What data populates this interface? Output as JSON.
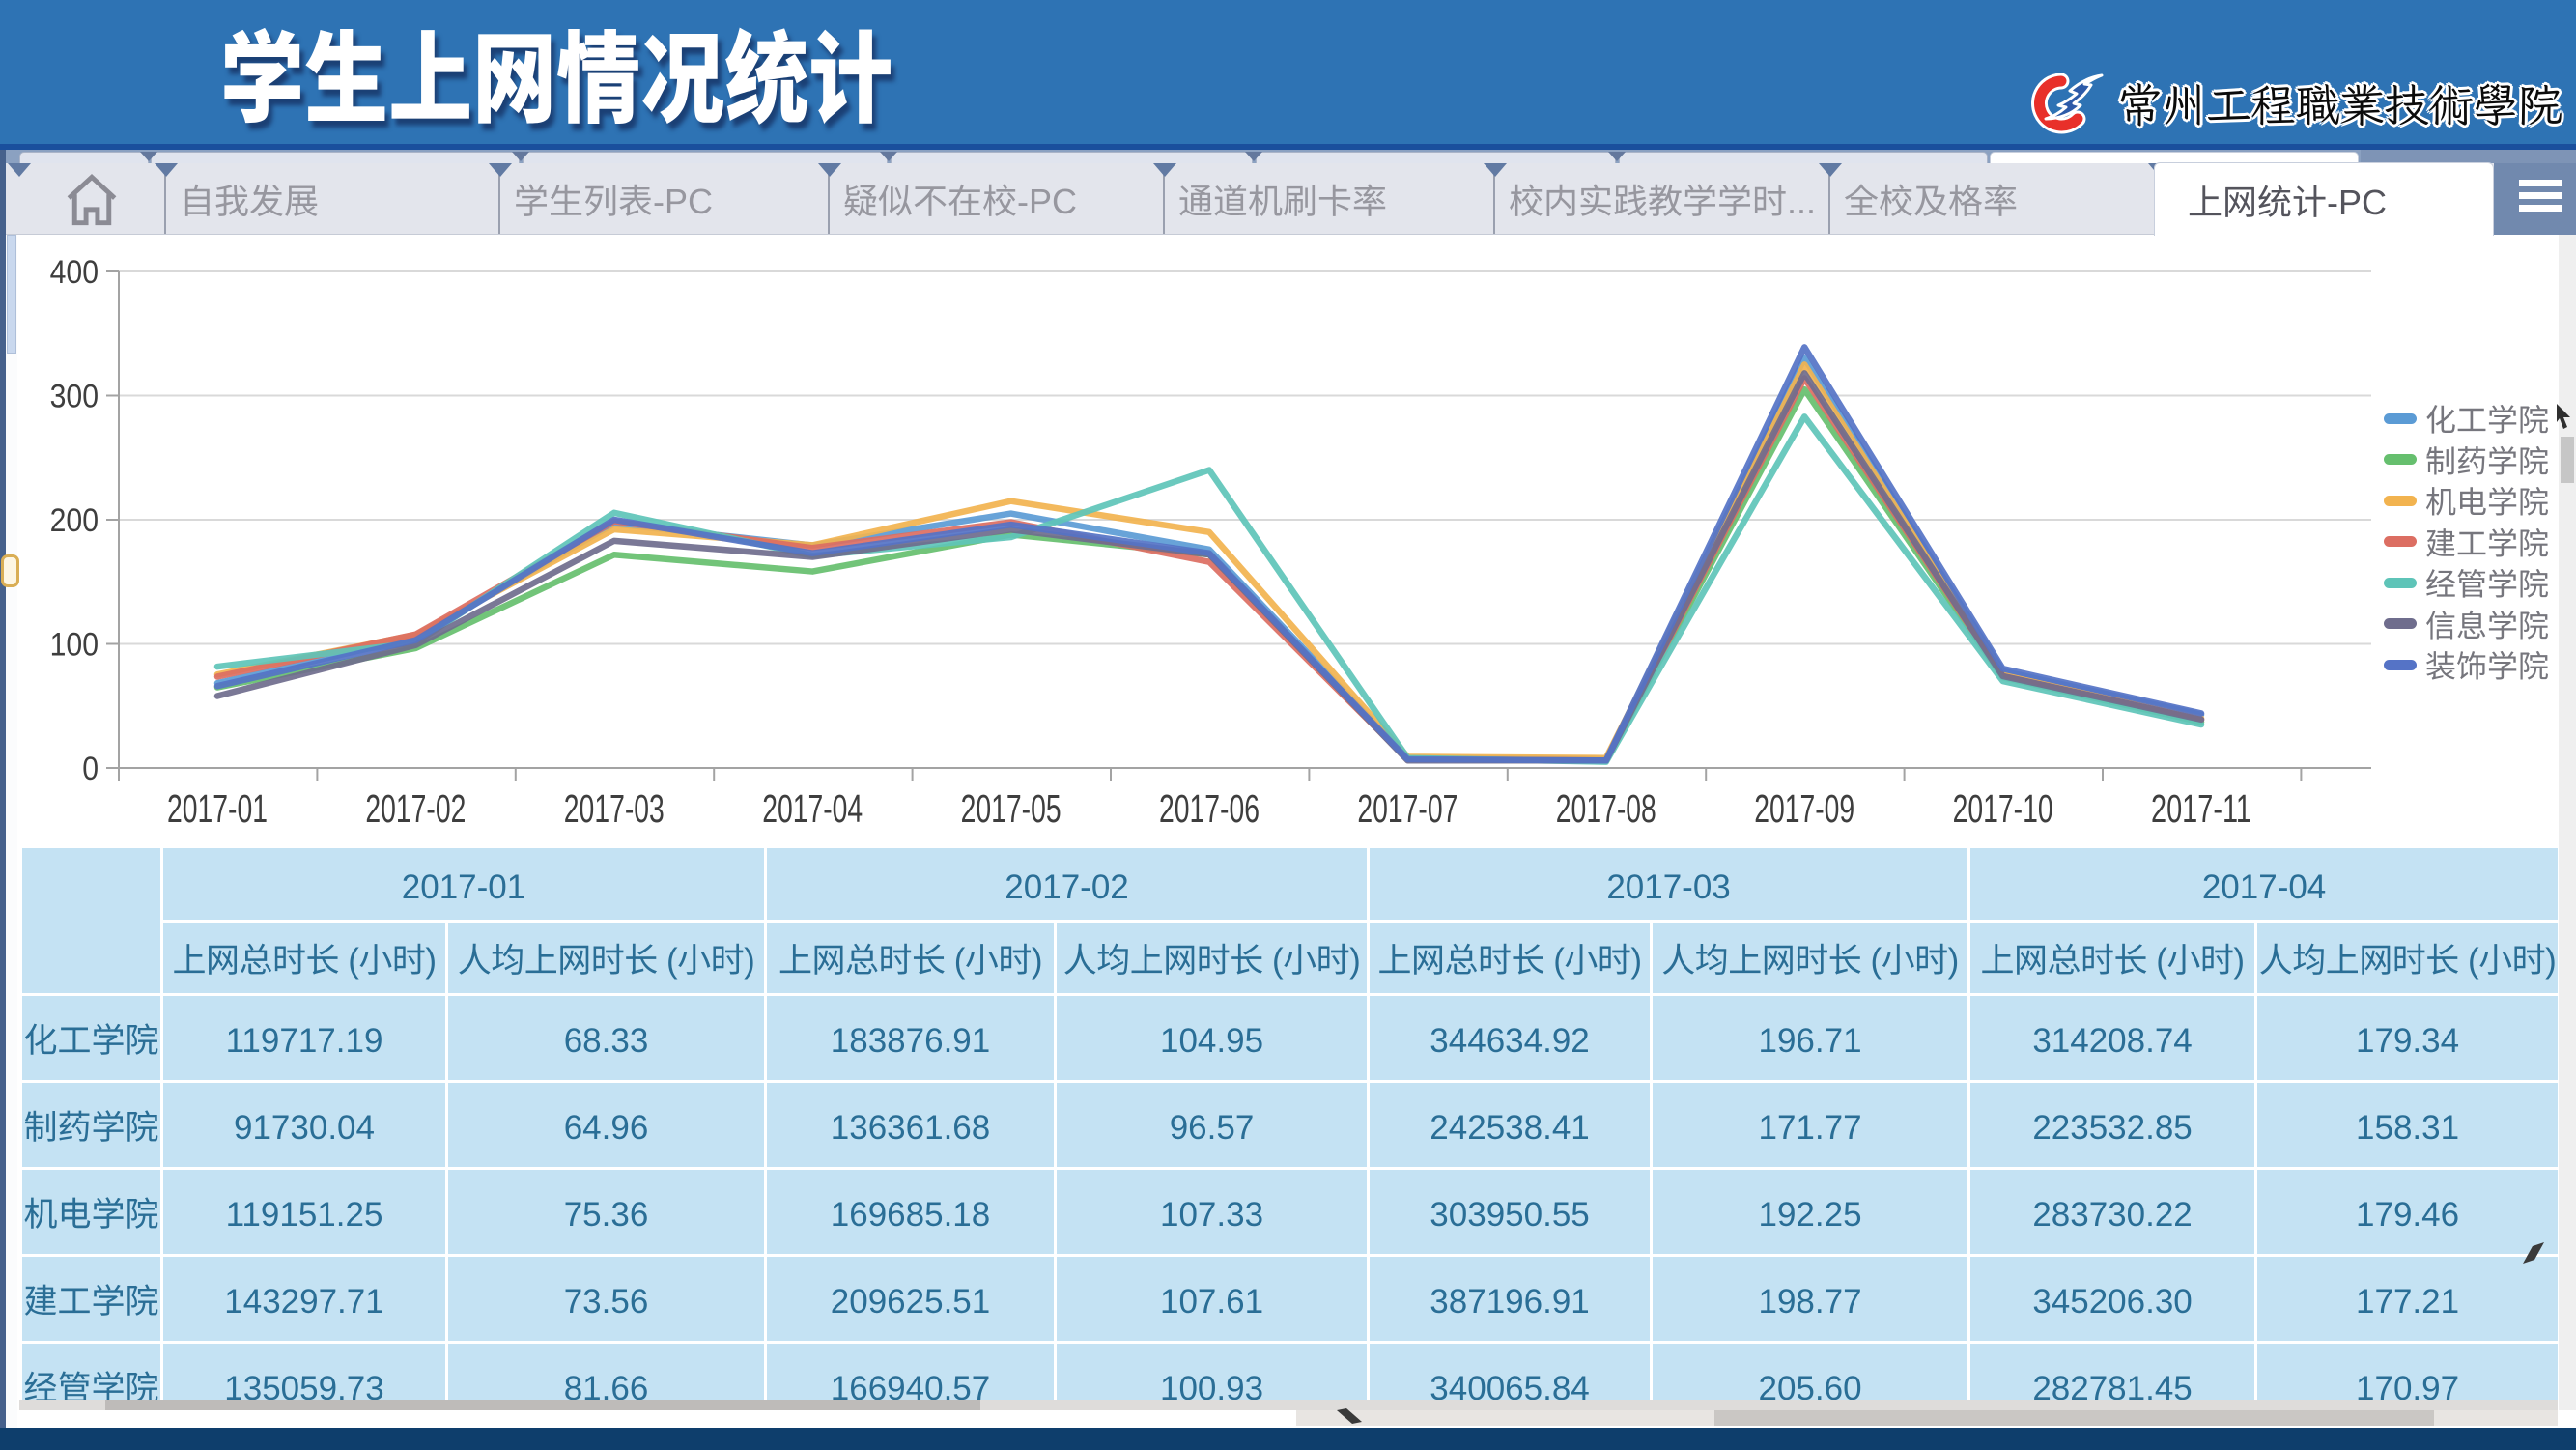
{
  "header": {
    "title": "学生上网情况统计",
    "logo_text": "常州工程職業技術學院"
  },
  "tabs": {
    "items": [
      {
        "label": "自我发展"
      },
      {
        "label": "学生列表-PC"
      },
      {
        "label": "疑似不在校-PC"
      },
      {
        "label": "通道机刷卡率"
      },
      {
        "label": "校内实践教学学时..."
      },
      {
        "label": "全校及格率"
      }
    ],
    "active": "上网统计-PC"
  },
  "chart_data": {
    "type": "line",
    "title": "",
    "xlabel": "",
    "ylabel": "",
    "ylim": [
      0,
      400
    ],
    "yticks": [
      0,
      100,
      200,
      300,
      400
    ],
    "grid": true,
    "legend_position": "right",
    "categories": [
      "2017-01",
      "2017-02",
      "2017-03",
      "2017-04",
      "2017-05",
      "2017-06",
      "2017-07",
      "2017-08",
      "2017-09",
      "2017-10",
      "2017-11"
    ],
    "series": [
      {
        "name": "化工学院",
        "color": "#5b9bd5",
        "values": [
          68.33,
          104.95,
          196.71,
          179.34,
          205,
          176,
          8,
          7,
          330,
          78,
          43
        ]
      },
      {
        "name": "制药学院",
        "color": "#66bf6e",
        "values": [
          64.96,
          96.57,
          171.77,
          158.31,
          188,
          172,
          7,
          6,
          305,
          73,
          37
        ]
      },
      {
        "name": "机电学院",
        "color": "#f2b34f",
        "values": [
          75.36,
          107.33,
          192.25,
          179.46,
          215,
          190,
          9,
          8,
          325,
          75,
          40
        ]
      },
      {
        "name": "建工学院",
        "color": "#dc6e62",
        "values": [
          73.56,
          107.61,
          198.77,
          177.21,
          198,
          166,
          7,
          6,
          314,
          74,
          39
        ]
      },
      {
        "name": "经管学院",
        "color": "#5ec4b8",
        "values": [
          81.66,
          100.93,
          205.6,
          170.97,
          186,
          240,
          8,
          5,
          283,
          70,
          35
        ]
      },
      {
        "name": "信息学院",
        "color": "#6f6d8d",
        "values": [
          58,
          99,
          183,
          170,
          192,
          172,
          6,
          6,
          318,
          74,
          39
        ]
      },
      {
        "name": "装饰学院",
        "color": "#5573c6",
        "values": [
          66,
          103,
          200,
          173,
          196,
          173,
          7,
          6,
          339,
          80,
          44
        ]
      }
    ]
  },
  "table": {
    "corner_label": "",
    "month_groups": [
      "2017-01",
      "2017-02",
      "2017-03",
      "2017-04"
    ],
    "sub_headers": [
      "上网总时长 (小时)",
      "人均上网时长 (小时)"
    ],
    "rows": [
      {
        "label": "化工学院",
        "values": [
          "119717.19",
          "68.33",
          "183876.91",
          "104.95",
          "344634.92",
          "196.71",
          "314208.74",
          "179.34"
        ]
      },
      {
        "label": "制药学院",
        "values": [
          "91730.04",
          "64.96",
          "136361.68",
          "96.57",
          "242538.41",
          "171.77",
          "223532.85",
          "158.31"
        ]
      },
      {
        "label": "机电学院",
        "values": [
          "119151.25",
          "75.36",
          "169685.18",
          "107.33",
          "303950.55",
          "192.25",
          "283730.22",
          "179.46"
        ]
      },
      {
        "label": "建工学院",
        "values": [
          "143297.71",
          "73.56",
          "209625.51",
          "107.61",
          "387196.91",
          "198.77",
          "345206.30",
          "177.21"
        ]
      },
      {
        "label": "经管学院",
        "values": [
          "135059.73",
          "81.66",
          "166940.57",
          "100.93",
          "340065.84",
          "205.60",
          "282781.45",
          "170.97"
        ]
      }
    ]
  },
  "colors": {
    "header_bg": "#2e73b4",
    "footer_bg": "#0e3e6c",
    "table_cell_bg": "#c4e2f3",
    "table_text": "#2a6e96",
    "tab_bg": "#e3e5ec",
    "active_tab_bg": "#ffffff"
  }
}
